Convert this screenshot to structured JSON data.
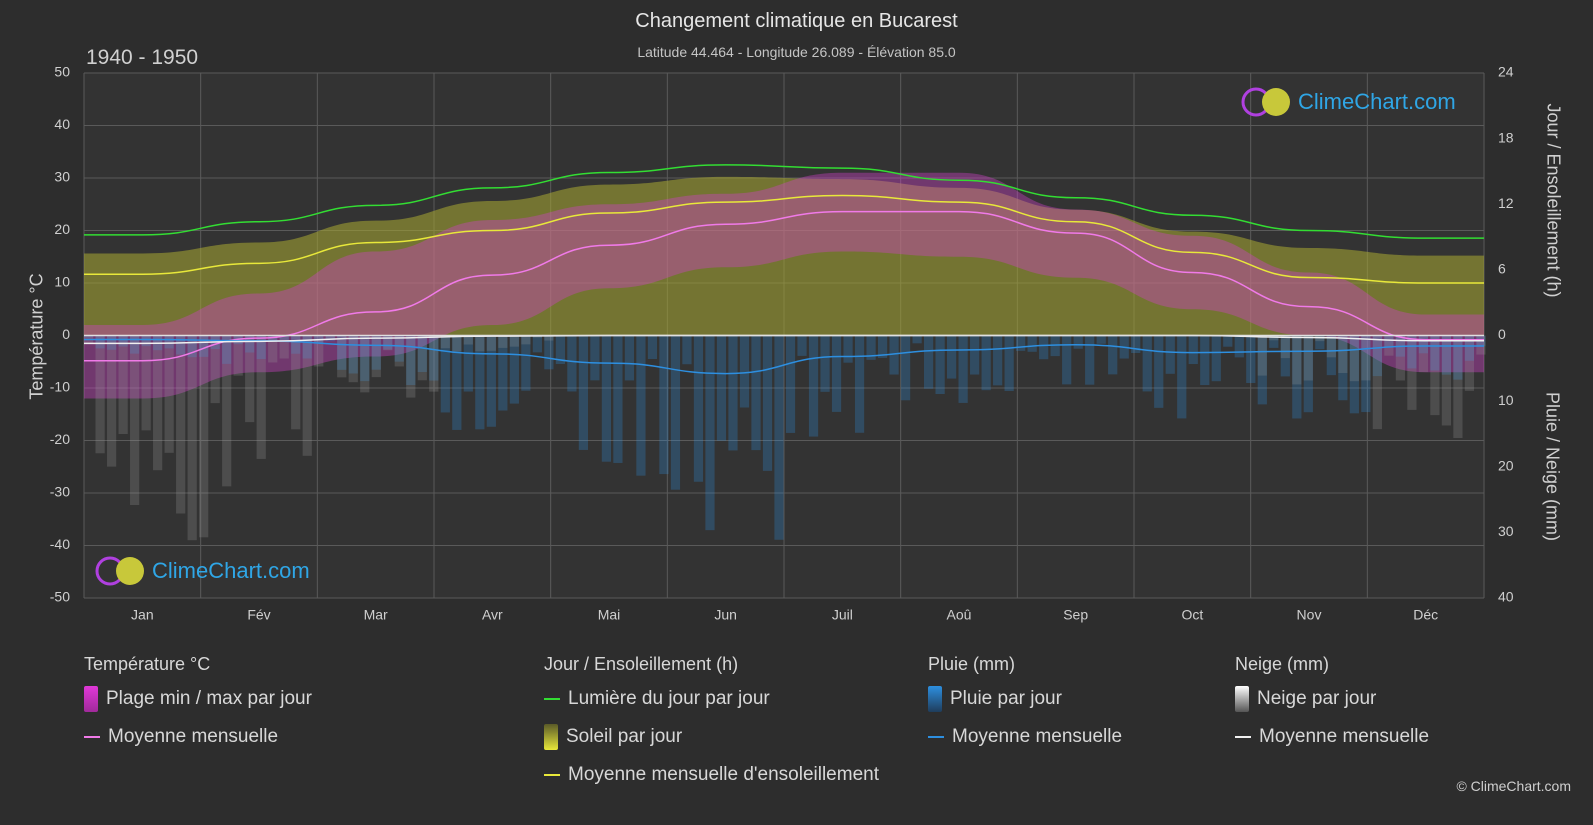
{
  "header": {
    "title": "Changement climatique en Bucarest",
    "subtitle": "Latitude 44.464 - Longitude 26.089 - Élévation 85.0",
    "period": "1940 - 1950"
  },
  "axes": {
    "left_title": "Température °C",
    "right_top_title": "Jour / Ensoleillement (h)",
    "right_bottom_title": "Pluie / Neige (mm)"
  },
  "logo": {
    "text": "ClimeChart.com"
  },
  "copyright": "© ClimeChart.com",
  "legend": {
    "temperature": {
      "head": "Température °C",
      "range": "Plage min / max par jour",
      "mean": "Moyenne mensuelle"
    },
    "sun": {
      "head": "Jour / Ensoleillement (h)",
      "daylight": "Lumière du jour par jour",
      "sunshine": "Soleil par jour",
      "sun_mean": "Moyenne mensuelle d'ensoleillement"
    },
    "rain": {
      "head": "Pluie (mm)",
      "daily": "Pluie par jour",
      "mean": "Moyenne mensuelle"
    },
    "snow": {
      "head": "Neige (mm)",
      "daily": "Neige par jour",
      "mean": "Moyenne mensuelle"
    }
  },
  "colors": {
    "daylight": "#33dd33",
    "sunshine_mean": "#e8e83a",
    "sunshine_fill": "#a9a932",
    "temp_mean": "#f07ae8",
    "temp_range": "#d040c8",
    "rain": "#2d8fe0",
    "snow": "#f0f0f0",
    "grid": "#5a5a5a"
  },
  "chart_data": {
    "type": "area",
    "categories": [
      "Jan",
      "Fév",
      "Mar",
      "Avr",
      "Mai",
      "Jun",
      "Juil",
      "Aoû",
      "Sep",
      "Oct",
      "Nov",
      "Déc"
    ],
    "y_left": {
      "label": "Température °C",
      "range": [
        -50,
        50
      ],
      "ticks": [
        50,
        40,
        30,
        20,
        10,
        0,
        -10,
        -20,
        -30,
        -40,
        -50
      ]
    },
    "y_right_top": {
      "label": "Jour / Ensoleillement (h)",
      "range": [
        0,
        24
      ],
      "ticks": [
        24,
        18,
        12,
        6,
        0
      ]
    },
    "y_right_bottom": {
      "label": "Pluie / Neige (mm)",
      "range": [
        0,
        40
      ],
      "ticks": [
        0,
        10,
        20,
        30,
        40
      ]
    },
    "grid": true,
    "series": [
      {
        "name": "Lumière du jour par jour",
        "unit": "h",
        "values": [
          9.2,
          10.4,
          11.9,
          13.5,
          14.9,
          15.6,
          15.3,
          14.2,
          12.6,
          11.0,
          9.6,
          8.9
        ]
      },
      {
        "name": "Moyenne mensuelle d'ensoleillement",
        "unit": "h",
        "values": [
          5.6,
          6.6,
          8.5,
          9.6,
          11.2,
          12.2,
          12.8,
          12.2,
          10.4,
          7.6,
          5.3,
          4.8
        ]
      },
      {
        "name": "Soleil par jour (plafond)",
        "unit": "h",
        "values": [
          7.5,
          8.5,
          10.5,
          12.3,
          13.8,
          14.5,
          14.3,
          13.5,
          11.5,
          9.5,
          8.0,
          7.3
        ]
      },
      {
        "name": "Température moyenne mensuelle",
        "unit": "°C",
        "values": [
          -4.8,
          -0.5,
          4.5,
          11.5,
          17.2,
          21.2,
          23.6,
          23.6,
          19.5,
          12.0,
          5.5,
          -0.8
        ]
      },
      {
        "name": "Température max journalière (moy.)",
        "unit": "°C",
        "values": [
          2,
          8,
          16,
          22,
          25,
          27,
          31,
          31,
          24,
          19,
          12,
          4
        ]
      },
      {
        "name": "Température min journalière (moy.)",
        "unit": "°C",
        "values": [
          -12,
          -7,
          -4,
          2,
          9,
          13,
          16,
          15,
          11,
          5,
          0,
          -7
        ]
      },
      {
        "name": "Pluie moyenne mensuelle",
        "unit": "mm",
        "values": [
          0.6,
          0.8,
          1.5,
          2.8,
          4.2,
          5.8,
          3.2,
          2.2,
          1.4,
          2.6,
          2.4,
          1.6
        ]
      },
      {
        "name": "Neige moyenne mensuelle",
        "unit": "mm",
        "values": [
          1.2,
          0.9,
          0.4,
          0.1,
          0,
          0,
          0,
          0,
          0,
          0,
          0.3,
          0.8
        ]
      }
    ]
  }
}
